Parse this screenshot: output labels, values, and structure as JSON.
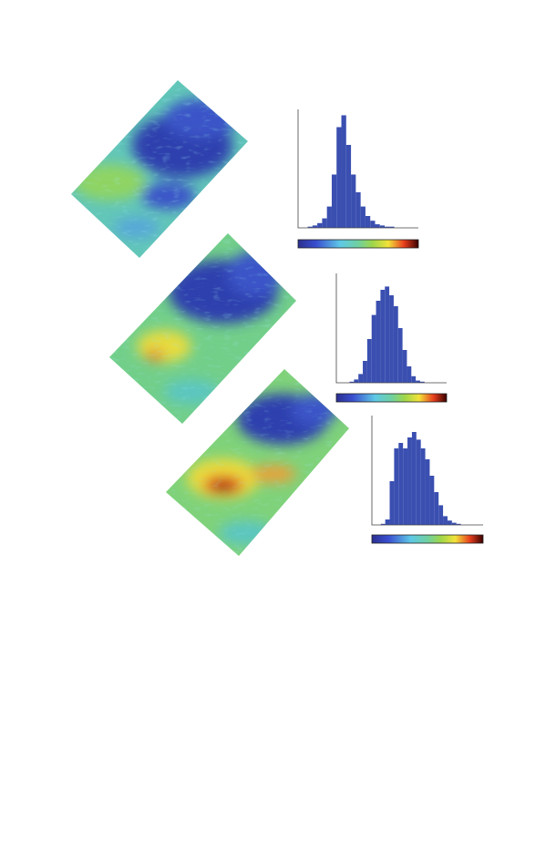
{
  "chart_data": [
    {
      "type": "histogram",
      "color": "#3a4fb0",
      "bins": [
        0,
        0.04,
        0.08,
        0.12,
        0.16,
        0.2,
        0.24,
        0.28,
        0.32,
        0.36,
        0.4,
        0.44,
        0.48,
        0.52,
        0.56,
        0.6,
        0.64,
        0.68,
        0.72,
        0.76,
        0.8,
        0.84,
        0.88,
        0.92,
        0.96,
        1
      ],
      "values": [
        0,
        0,
        1,
        2,
        4,
        8,
        18,
        45,
        85,
        95,
        70,
        45,
        30,
        18,
        10,
        6,
        3,
        2,
        1,
        1,
        0,
        0,
        0,
        0,
        0
      ],
      "xlim": [
        0,
        1
      ],
      "ylim": [
        0,
        100
      ]
    },
    {
      "type": "histogram",
      "color": "#3a4fb0",
      "bins": [
        0,
        0.04,
        0.08,
        0.12,
        0.16,
        0.2,
        0.24,
        0.28,
        0.32,
        0.36,
        0.4,
        0.44,
        0.48,
        0.52,
        0.56,
        0.6,
        0.64,
        0.68,
        0.72,
        0.76,
        0.8,
        0.84,
        0.88,
        0.92,
        0.96,
        1
      ],
      "values": [
        0,
        0,
        0,
        1,
        3,
        8,
        20,
        40,
        62,
        75,
        85,
        88,
        80,
        70,
        50,
        30,
        15,
        6,
        2,
        1,
        0,
        0,
        0,
        0,
        0
      ],
      "xlim": [
        0,
        1
      ],
      "ylim": [
        0,
        100
      ]
    },
    {
      "type": "histogram",
      "color": "#3a4fb0",
      "bins": [
        0,
        0.04,
        0.08,
        0.12,
        0.16,
        0.2,
        0.24,
        0.28,
        0.32,
        0.36,
        0.4,
        0.44,
        0.48,
        0.52,
        0.56,
        0.6,
        0.64,
        0.68,
        0.72,
        0.76,
        0.8,
        0.84,
        0.88,
        0.92,
        0.96,
        1
      ],
      "values": [
        0,
        0,
        1,
        5,
        40,
        70,
        75,
        70,
        80,
        85,
        78,
        70,
        60,
        45,
        30,
        18,
        8,
        4,
        2,
        1,
        0,
        0,
        0,
        0,
        0
      ],
      "xlim": [
        0,
        1
      ],
      "ylim": [
        0,
        100
      ]
    }
  ]
}
